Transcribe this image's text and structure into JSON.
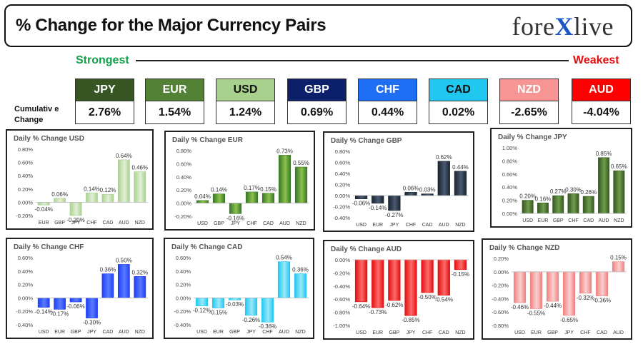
{
  "header": {
    "title": "% Change for the Major Currency Pairs",
    "logo_left": "fore",
    "logo_x": "X",
    "logo_right": "live"
  },
  "ranking": {
    "strongest_label": "Strongest",
    "weakest_label": "Weakest",
    "cumulative_label": "Cumulativ e Change"
  },
  "currencies": [
    {
      "code": "JPY",
      "value": "2.76%",
      "color": "#375623",
      "text_color": "#ffffff"
    },
    {
      "code": "EUR",
      "value": "1.54%",
      "color": "#538135",
      "text_color": "#ffffff"
    },
    {
      "code": "USD",
      "value": "1.24%",
      "color": "#a9d18e",
      "text_color": "#111111"
    },
    {
      "code": "GBP",
      "value": "0.69%",
      "color": "#0b1f6b",
      "text_color": "#ffffff"
    },
    {
      "code": "CHF",
      "value": "0.44%",
      "color": "#1f6ff5",
      "text_color": "#ffffff"
    },
    {
      "code": "CAD",
      "value": "0.02%",
      "color": "#20c8f0",
      "text_color": "#111111"
    },
    {
      "code": "NZD",
      "value": "-2.65%",
      "color": "#f79595",
      "text_color": "#ffffff"
    },
    {
      "code": "AUD",
      "value": "-4.04%",
      "color": "#ff0000",
      "text_color": "#ffffff"
    }
  ],
  "chart_data": [
    {
      "type": "bar",
      "title": "Daily % Change USD",
      "categories": [
        "EUR",
        "GBP",
        "JPY",
        "CHF",
        "CAD",
        "AUD",
        "NZD"
      ],
      "values": [
        -0.04,
        0.06,
        -0.2,
        0.14,
        0.12,
        0.64,
        0.46
      ],
      "labels": [
        "-0.04%",
        "0.06%",
        "-0.20%",
        "0.14%",
        "0.12%",
        "0.64%",
        "0.46%"
      ],
      "ylim": [
        -0.2,
        0.8
      ],
      "ticks": [
        -0.2,
        0,
        0.2,
        0.4,
        0.6,
        0.8
      ],
      "tick_labels": [
        "-0.20%",
        "0.00%",
        "0.20%",
        "0.40%",
        "0.60%",
        "0.80%"
      ],
      "color": "#a9d18e",
      "color_light": "#e2f0d9"
    },
    {
      "type": "bar",
      "title": "Daily % Change EUR",
      "categories": [
        "USD",
        "GBP",
        "JPY",
        "CHF",
        "CAD",
        "AUD",
        "NZD"
      ],
      "values": [
        0.04,
        0.14,
        -0.16,
        0.17,
        0.15,
        0.73,
        0.55
      ],
      "labels": [
        "0.04%",
        "0.14%",
        "-0.16%",
        "0.17%",
        "0.15%",
        "0.73%",
        "0.55%"
      ],
      "ylim": [
        -0.2,
        0.8
      ],
      "ticks": [
        -0.2,
        0,
        0.2,
        0.4,
        0.6,
        0.8
      ],
      "tick_labels": [
        "-0.20%",
        "0.00%",
        "0.20%",
        "0.40%",
        "0.60%",
        "0.80%"
      ],
      "color": "#38762a",
      "color_light": "#8bc34a"
    },
    {
      "type": "bar",
      "title": "Daily % Change GBP",
      "categories": [
        "USD",
        "EUR",
        "JPY",
        "CHF",
        "CAD",
        "AUD",
        "NZD"
      ],
      "values": [
        -0.06,
        -0.14,
        -0.27,
        0.06,
        0.03,
        0.62,
        0.44
      ],
      "labels": [
        "-0.06%",
        "-0.14%",
        "-0.27%",
        "0.06%",
        "0.03%",
        "0.62%",
        "0.44%"
      ],
      "ylim": [
        -0.4,
        0.8
      ],
      "ticks": [
        -0.4,
        -0.2,
        0,
        0.2,
        0.4,
        0.6,
        0.8
      ],
      "tick_labels": [
        "-0.40%",
        "-0.20%",
        "0.00%",
        "0.20%",
        "0.40%",
        "0.60%",
        "0.80%"
      ],
      "color": "#1a2330",
      "color_light": "#4a5a70"
    },
    {
      "type": "bar",
      "title": "Daily % Change JPY",
      "categories": [
        "USD",
        "EUR",
        "GBP",
        "CHF",
        "CAD",
        "AUD",
        "NZD"
      ],
      "values": [
        0.2,
        0.16,
        0.27,
        0.3,
        0.26,
        0.85,
        0.65
      ],
      "labels": [
        "0.20%",
        "0.16%",
        "0.27%",
        "0.30%",
        "0.26%",
        "0.85%",
        "0.65%"
      ],
      "ylim": [
        0,
        1.0
      ],
      "ticks": [
        0,
        0.2,
        0.4,
        0.6,
        0.8,
        1.0
      ],
      "tick_labels": [
        "0.00%",
        "0.20%",
        "0.40%",
        "0.60%",
        "0.80%",
        "1.00%"
      ],
      "color": "#375623",
      "color_light": "#6e9e4a"
    },
    {
      "type": "bar",
      "title": "Daily % Change CHF",
      "categories": [
        "USD",
        "EUR",
        "GBP",
        "JPY",
        "CAD",
        "AUD",
        "NZD"
      ],
      "values": [
        -0.14,
        -0.17,
        -0.06,
        -0.3,
        0.36,
        0.5,
        0.32
      ],
      "labels": [
        "-0.14%",
        "-0.17%",
        "-0.06%",
        "-0.30%",
        "0.36%",
        "0.50%",
        "0.32%"
      ],
      "ylim": [
        -0.4,
        0.6
      ],
      "ticks": [
        -0.4,
        -0.2,
        0,
        0.2,
        0.4,
        0.6
      ],
      "tick_labels": [
        "-0.40%",
        "-0.20%",
        "0.00%",
        "0.20%",
        "0.40%",
        "0.60%"
      ],
      "color": "#1f3ff5",
      "color_light": "#5a7bff"
    },
    {
      "type": "bar",
      "title": "Daily % Change CAD",
      "categories": [
        "USD",
        "EUR",
        "GBP",
        "JPY",
        "CHF",
        "AUD",
        "NZD"
      ],
      "values": [
        -0.12,
        -0.15,
        -0.03,
        -0.26,
        -0.36,
        0.54,
        0.36
      ],
      "labels": [
        "-0.12%",
        "-0.15%",
        "-0.03%",
        "-0.26%",
        "-0.36%",
        "0.54%",
        "0.36%"
      ],
      "ylim": [
        -0.4,
        0.6
      ],
      "ticks": [
        -0.4,
        -0.2,
        0,
        0.2,
        0.4,
        0.6
      ],
      "tick_labels": [
        "-0.40%",
        "-0.20%",
        "0.00%",
        "0.20%",
        "0.40%",
        "0.60%"
      ],
      "color": "#20c8f0",
      "color_light": "#9be8fa"
    },
    {
      "type": "bar",
      "title": "Daily % Change AUD",
      "categories": [
        "USD",
        "EUR",
        "GBP",
        "JPY",
        "CHF",
        "CAD",
        "NZD"
      ],
      "values": [
        -0.64,
        -0.73,
        -0.62,
        -0.85,
        -0.5,
        -0.54,
        -0.15
      ],
      "labels": [
        "-0.64%",
        "-0.73%",
        "-0.62%",
        "-0.85%",
        "-0.50%",
        "-0.54%",
        "-0.15%"
      ],
      "ylim": [
        -1.0,
        0
      ],
      "ticks": [
        -1.0,
        -0.8,
        -0.6,
        -0.4,
        -0.2,
        0
      ],
      "tick_labels": [
        "-1.00%",
        "-0.80%",
        "-0.60%",
        "-0.40%",
        "-0.20%",
        "0.00%"
      ],
      "color": "#e01010",
      "color_light": "#ff6a6a"
    },
    {
      "type": "bar",
      "title": "Daily % Change NZD",
      "categories": [
        "USD",
        "EUR",
        "GBP",
        "JPY",
        "CHF",
        "CAD",
        "AUD"
      ],
      "values": [
        -0.46,
        -0.55,
        -0.44,
        -0.65,
        -0.32,
        -0.36,
        0.15
      ],
      "labels": [
        "-0.46%",
        "-0.55%",
        "-0.44%",
        "-0.65%",
        "-0.32%",
        "-0.36%",
        "0.15%"
      ],
      "ylim": [
        -0.8,
        0.2
      ],
      "ticks": [
        -0.8,
        -0.6,
        -0.4,
        -0.2,
        0,
        0.2
      ],
      "tick_labels": [
        "-0.80%",
        "-0.60%",
        "-0.40%",
        "-0.20%",
        "0.00%",
        "0.20%"
      ],
      "color": "#f08080",
      "color_light": "#fbd0d0"
    }
  ]
}
